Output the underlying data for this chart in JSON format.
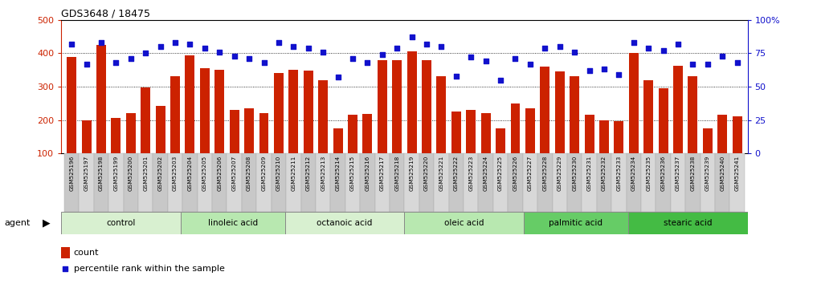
{
  "title": "GDS3648 / 18475",
  "samples": [
    "GSM525196",
    "GSM525197",
    "GSM525198",
    "GSM525199",
    "GSM525200",
    "GSM525201",
    "GSM525202",
    "GSM525203",
    "GSM525204",
    "GSM525205",
    "GSM525206",
    "GSM525207",
    "GSM525208",
    "GSM525209",
    "GSM525210",
    "GSM525211",
    "GSM525212",
    "GSM525213",
    "GSM525214",
    "GSM525215",
    "GSM525216",
    "GSM525217",
    "GSM525218",
    "GSM525219",
    "GSM525220",
    "GSM525221",
    "GSM525222",
    "GSM525223",
    "GSM525224",
    "GSM525225",
    "GSM525226",
    "GSM525227",
    "GSM525228",
    "GSM525229",
    "GSM525230",
    "GSM525231",
    "GSM525232",
    "GSM525233",
    "GSM525234",
    "GSM525235",
    "GSM525236",
    "GSM525237",
    "GSM525238",
    "GSM525239",
    "GSM525240",
    "GSM525241"
  ],
  "counts": [
    390,
    200,
    425,
    205,
    220,
    298,
    242,
    330,
    393,
    355,
    350,
    230,
    235,
    220,
    340,
    350,
    348,
    320,
    175,
    215,
    218,
    380,
    380,
    405,
    380,
    330,
    225,
    230,
    220,
    175,
    250,
    235,
    360,
    345,
    330,
    215,
    200,
    196,
    400,
    320,
    295,
    362,
    330,
    175,
    215,
    212
  ],
  "percentiles": [
    82,
    67,
    83,
    68,
    71,
    75,
    80,
    83,
    82,
    79,
    76,
    73,
    71,
    68,
    83,
    80,
    79,
    76,
    57,
    71,
    68,
    74,
    79,
    87,
    82,
    80,
    58,
    72,
    69,
    55,
    71,
    67,
    79,
    80,
    76,
    62,
    63,
    59,
    83,
    79,
    77,
    82,
    67,
    67,
    73,
    68
  ],
  "groups": [
    {
      "label": "control",
      "start": 0,
      "end": 8
    },
    {
      "label": "linoleic acid",
      "start": 8,
      "end": 15
    },
    {
      "label": "octanoic acid",
      "start": 15,
      "end": 23
    },
    {
      "label": "oleic acid",
      "start": 23,
      "end": 31
    },
    {
      "label": "palmitic acid",
      "start": 31,
      "end": 38
    },
    {
      "label": "stearic acid",
      "start": 38,
      "end": 46
    }
  ],
  "bar_color": "#cc2200",
  "dot_color": "#1111cc",
  "ylim_left": [
    100,
    500
  ],
  "ylim_right": [
    0,
    100
  ],
  "yticks_left": [
    100,
    200,
    300,
    400,
    500
  ],
  "yticks_right": [
    0,
    25,
    50,
    75,
    100
  ],
  "group_colors": [
    "#e8f8e8",
    "#cceecc",
    "#e8f8e8",
    "#cceecc",
    "#77dd77",
    "#44cc44"
  ],
  "tick_bg_color": "#d8d8d8"
}
